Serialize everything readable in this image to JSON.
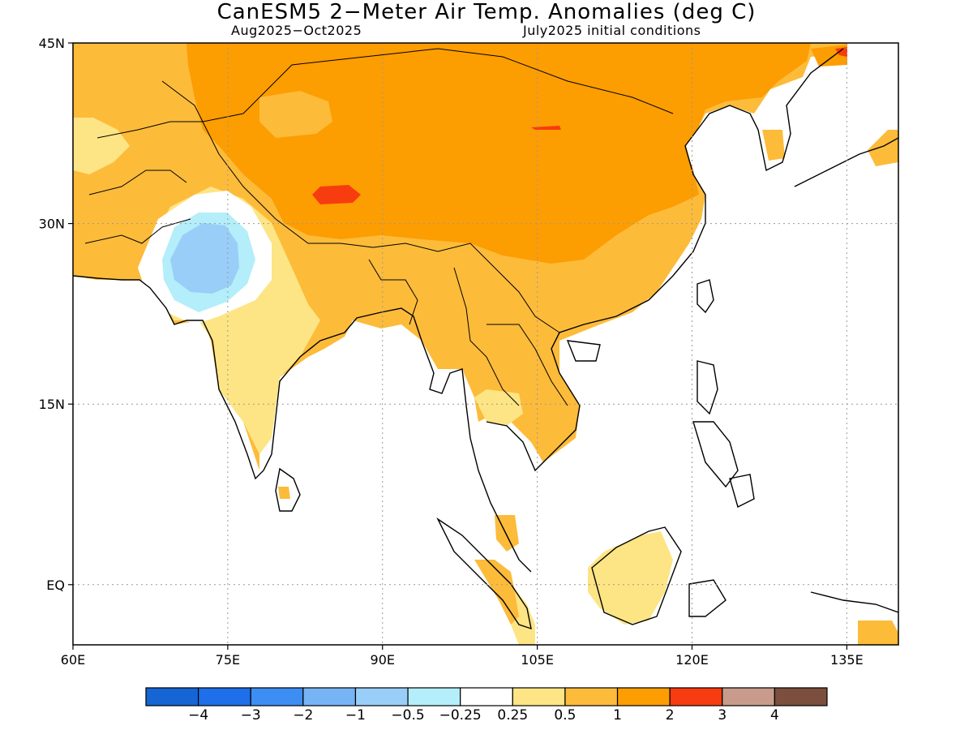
{
  "title": "CanESM5 2−Meter Air Temp. Anomalies (deg C)",
  "subtitle_left": "Aug2025−Oct2025",
  "subtitle_right": "July2025 initial conditions",
  "map": {
    "lon_range": [
      60,
      140
    ],
    "lat_range": [
      -5,
      45
    ],
    "lon_ticks": [
      {
        "v": 60,
        "label": "60E"
      },
      {
        "v": 75,
        "label": "75E"
      },
      {
        "v": 90,
        "label": "90E"
      },
      {
        "v": 105,
        "label": "105E"
      },
      {
        "v": 120,
        "label": "120E"
      },
      {
        "v": 135,
        "label": "135E"
      }
    ],
    "lat_ticks": [
      {
        "v": 45,
        "label": "45N"
      },
      {
        "v": 30,
        "label": "30N"
      },
      {
        "v": 15,
        "label": "15N"
      },
      {
        "v": 0,
        "label": "EQ"
      }
    ],
    "grid": "dotted"
  },
  "colorbar": {
    "colors": [
      "#1565d4",
      "#1e6fea",
      "#3d8ef3",
      "#77b4f6",
      "#99cef8",
      "#b3eefa",
      "#ffffff",
      "#fde585",
      "#fdbb3a",
      "#fc9d02",
      "#f73c10",
      "#c89b8c",
      "#7b4e3e"
    ],
    "labels": [
      "−4",
      "−3",
      "−2",
      "−1",
      "−0.5",
      "−0.25",
      "0.25",
      "0.5",
      "1",
      "2",
      "3",
      "4"
    ]
  }
}
